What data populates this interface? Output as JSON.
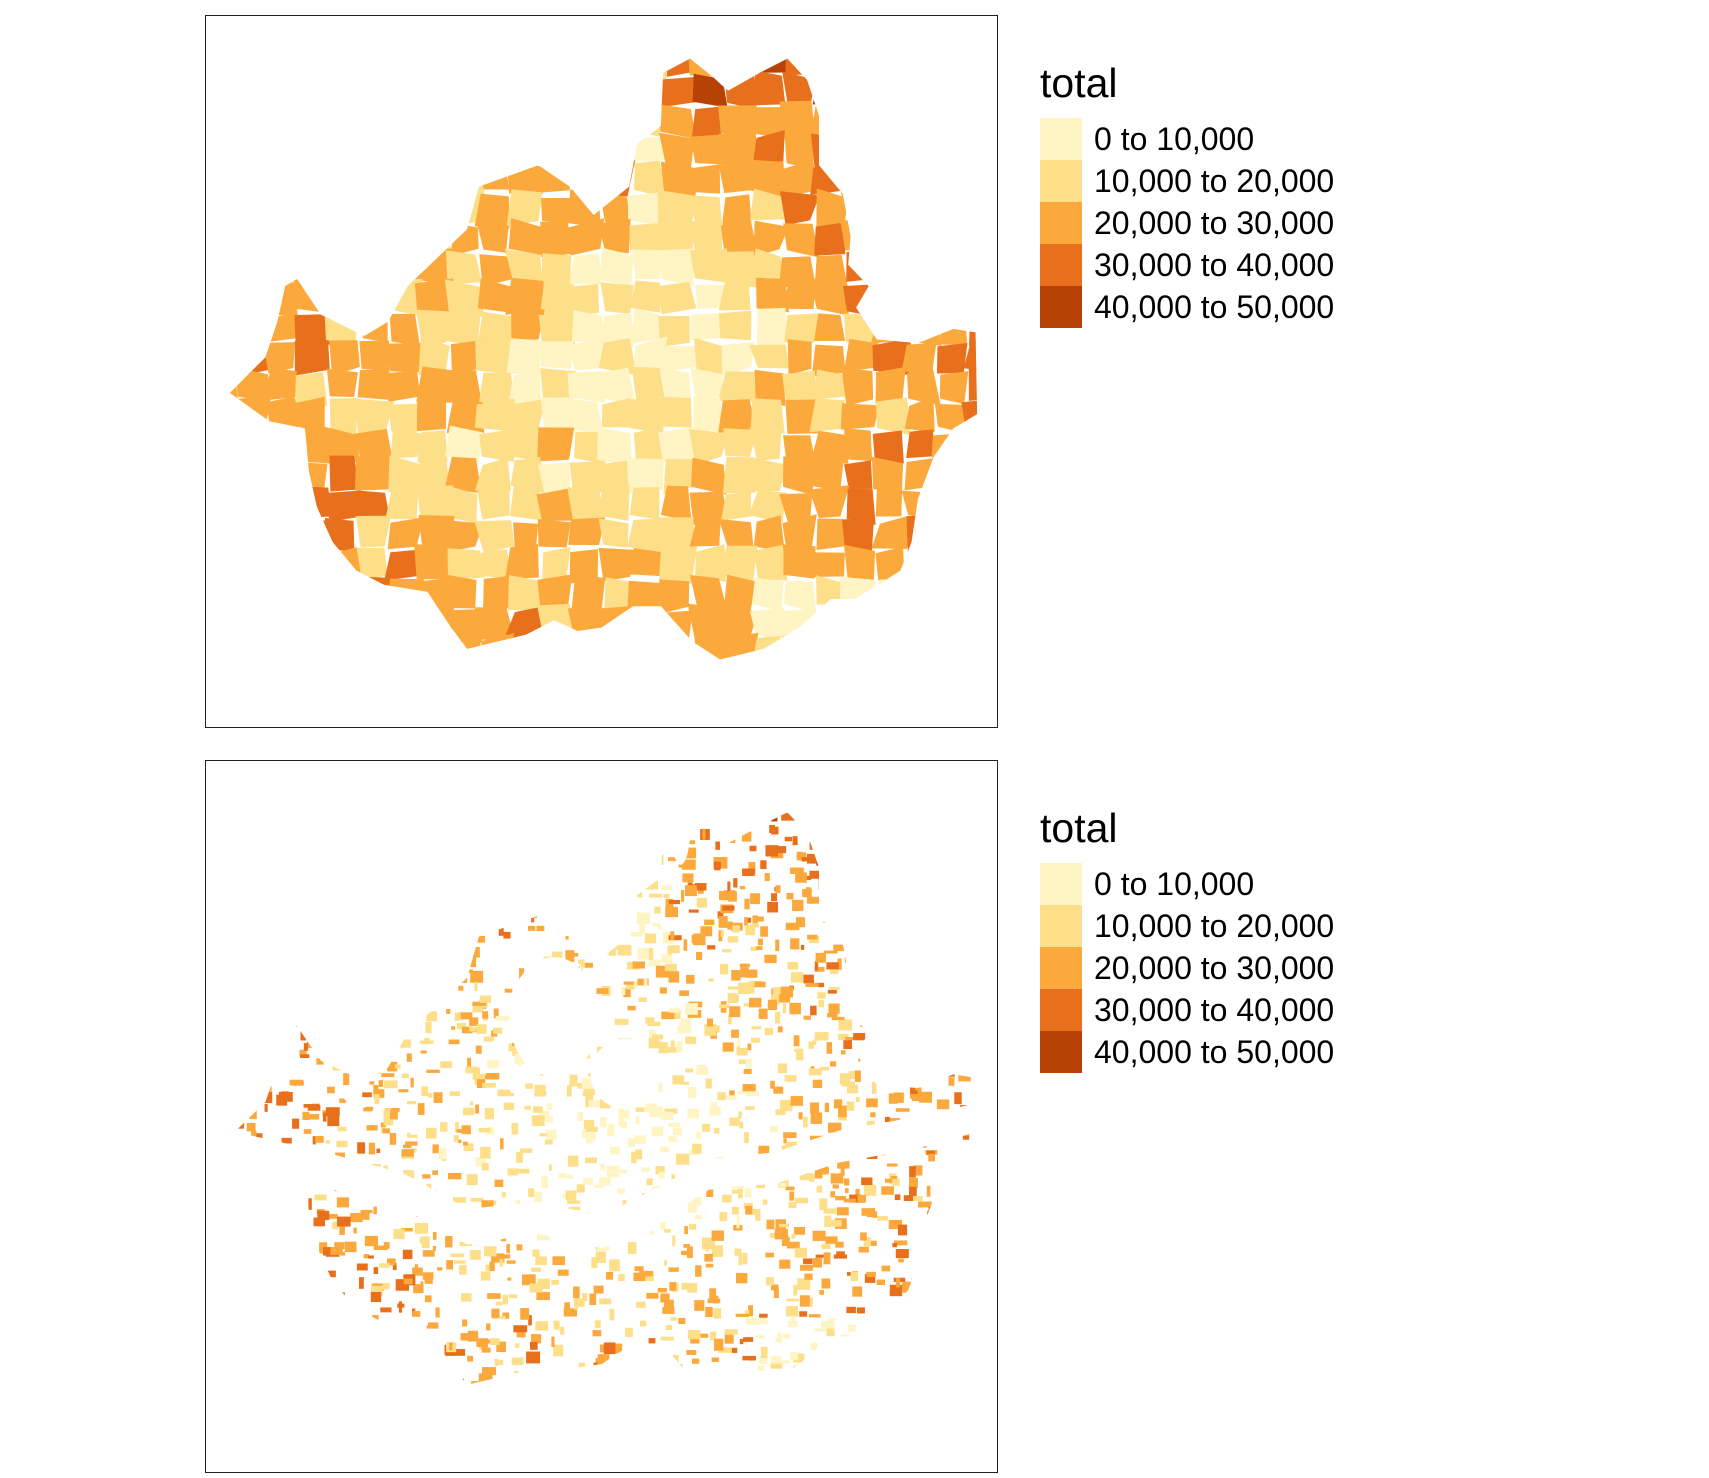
{
  "maps": [
    {
      "id": "map-1",
      "style": "district-choropleth",
      "legend_title": "total"
    },
    {
      "id": "map-2",
      "style": "building-footprint-choropleth",
      "legend_title": "total"
    }
  ],
  "legend": {
    "title": "total",
    "classes": [
      {
        "label": "0 to 10,000",
        "color": "#fff5c4"
      },
      {
        "label": "10,000 to 20,000",
        "color": "#fddf8a"
      },
      {
        "label": "20,000 to 30,000",
        "color": "#fba93c"
      },
      {
        "label": "30,000 to 40,000",
        "color": "#e8701c"
      },
      {
        "label": "40,000 to 50,000",
        "color": "#b84206"
      }
    ]
  },
  "chart_data": [
    {
      "type": "map",
      "legend_title": "total",
      "class_breaks": [
        "0 to 10,000",
        "10,000 to 20,000",
        "20,000 to 30,000",
        "30,000 to 40,000",
        "40,000 to 50,000"
      ],
      "palette": [
        "#fff5c4",
        "#fddf8a",
        "#fba93c",
        "#e8701c",
        "#b84206"
      ],
      "legend_placement": "right",
      "frame": true
    },
    {
      "type": "map",
      "legend_title": "total",
      "class_breaks": [
        "0 to 10,000",
        "10,000 to 20,000",
        "20,000 to 30,000",
        "30,000 to 40,000",
        "40,000 to 50,000"
      ],
      "palette": [
        "#fff5c4",
        "#fddf8a",
        "#fba93c",
        "#e8701c",
        "#b84206"
      ],
      "legend_placement": "right",
      "frame": true
    }
  ]
}
